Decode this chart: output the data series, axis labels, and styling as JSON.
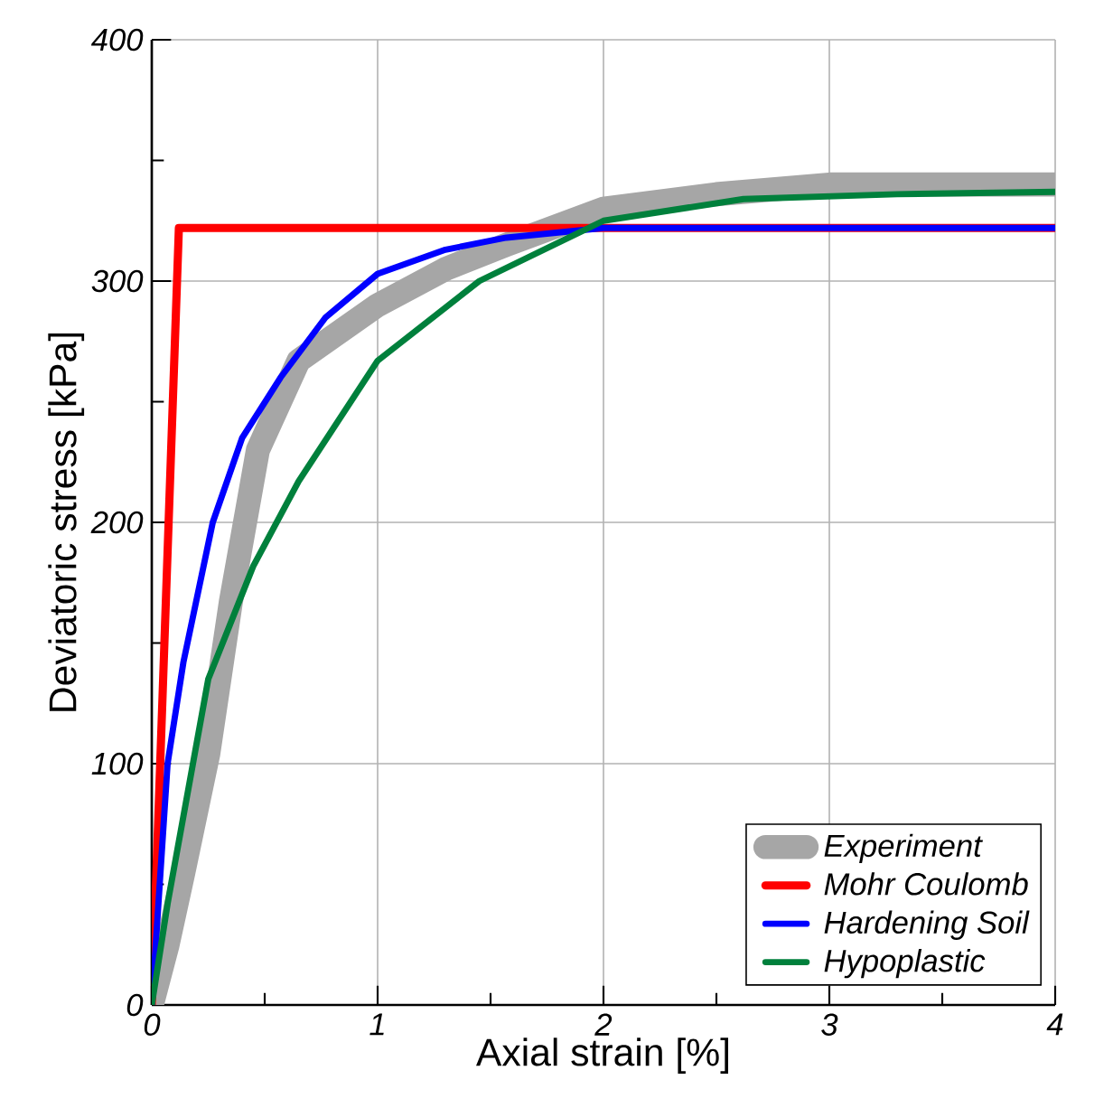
{
  "chart_data": {
    "type": "line",
    "xlabel": "Axial strain [%]",
    "ylabel": "Deviatoric stress [kPa]",
    "xlim": [
      0,
      4
    ],
    "ylim": [
      0,
      400
    ],
    "xticks": [
      0,
      1,
      2,
      3,
      4
    ],
    "yticks": [
      0,
      100,
      200,
      300,
      400
    ],
    "grid": true,
    "legend": "bottom right",
    "marker": "none",
    "line_style": "solid",
    "series": [
      {
        "name": "Experiment",
        "color": "#a6a6a6",
        "x": [
          0,
          0.07,
          0.14,
          0.25,
          0.35,
          0.47,
          0.65,
          1.0,
          1.3,
          1.57,
          2.0,
          2.5,
          3.0,
          3.5,
          4.0
        ],
        "values": [
          0,
          25,
          55,
          104,
          167,
          230,
          267,
          290,
          305,
          315,
          330,
          336,
          340,
          340,
          340
        ]
      },
      {
        "name": "Mohr Coulomb",
        "color": "#ff0000",
        "x": [
          0,
          0.12,
          4.0
        ],
        "values": [
          0,
          322,
          322
        ]
      },
      {
        "name": "Hardening Soil",
        "color": "#0000ff",
        "x": [
          0,
          0.07,
          0.14,
          0.27,
          0.4,
          0.57,
          0.77,
          1.0,
          1.3,
          1.57,
          2.0,
          4.0
        ],
        "values": [
          0,
          100,
          142,
          200,
          235,
          260,
          285,
          303,
          313,
          318,
          322,
          322
        ]
      },
      {
        "name": "Hypoplastic",
        "color": "#00803c",
        "x": [
          0,
          0.07,
          0.25,
          0.45,
          0.65,
          1.0,
          1.45,
          2.0,
          2.62,
          3.3,
          4.0
        ],
        "values": [
          0,
          42,
          135,
          182,
          217,
          267,
          300,
          325,
          334,
          336,
          337
        ]
      }
    ]
  }
}
